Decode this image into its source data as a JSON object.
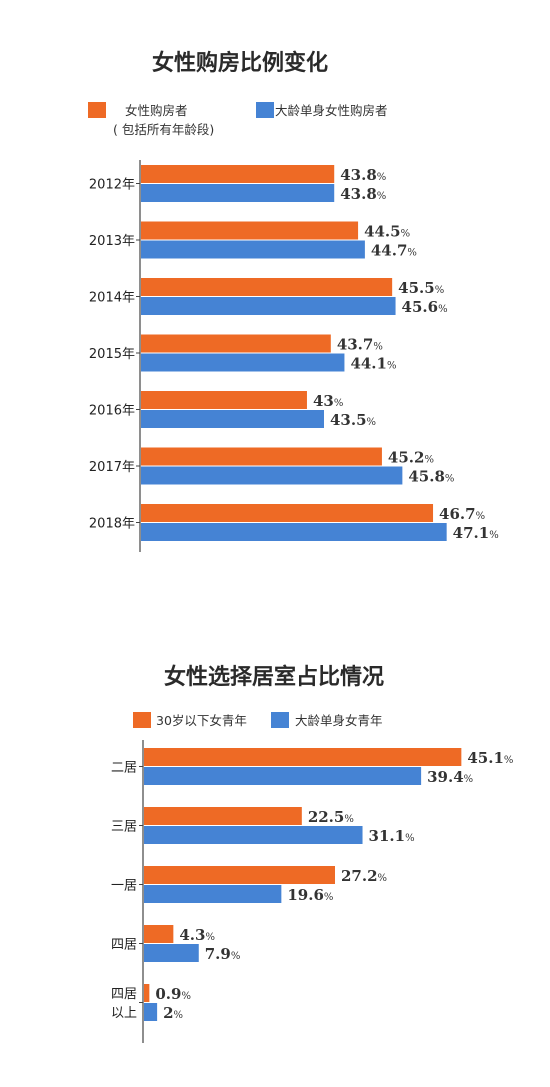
{
  "chart_data": [
    {
      "type": "bar",
      "orientation": "horizontal",
      "title": "女性购房比例变化",
      "legend": [
        {
          "lines": [
            "女性购房者",
            "( 包括所有年龄段)"
          ],
          "color": "#ee6a25"
        },
        {
          "lines": [
            "大龄单身女性购房者"
          ],
          "color": "#4583d4"
        }
      ],
      "categories": [
        "2012年",
        "2013年",
        "2014年",
        "2015年",
        "2016年",
        "2017年",
        "2018年"
      ],
      "series": [
        {
          "name": "女性购房者",
          "color": "#ee6a25",
          "values": [
            43.8,
            44.5,
            45.5,
            43.7,
            43,
            45.2,
            46.7
          ]
        },
        {
          "name": "大龄单身女性购房者",
          "color": "#4583d4",
          "values": [
            43.8,
            44.7,
            45.6,
            44.1,
            43.5,
            45.8,
            47.1
          ]
        }
      ],
      "value_suffix": "%",
      "xlim": [
        38.1,
        48.9
      ],
      "grid": false
    },
    {
      "type": "bar",
      "orientation": "horizontal",
      "title": "女性选择居室占比情况",
      "legend": [
        {
          "lines": [
            "30岁以下女青年"
          ],
          "color": "#ee6a25"
        },
        {
          "lines": [
            "大龄单身女青年"
          ],
          "color": "#4583d4"
        }
      ],
      "categories": [
        [
          "二居"
        ],
        [
          "三居"
        ],
        [
          "一居"
        ],
        [
          "四居"
        ],
        [
          "四居",
          "以上"
        ]
      ],
      "series": [
        {
          "name": "30岁以下女青年",
          "color": "#ee6a25",
          "values": [
            45.1,
            22.5,
            27.2,
            4.3,
            0.9
          ]
        },
        {
          "name": "大龄单身女青年",
          "color": "#4583d4",
          "values": [
            39.4,
            31.1,
            19.6,
            7.9,
            2
          ]
        }
      ],
      "value_suffix": "%",
      "xlim": [
        0,
        51
      ],
      "grid": false
    }
  ]
}
